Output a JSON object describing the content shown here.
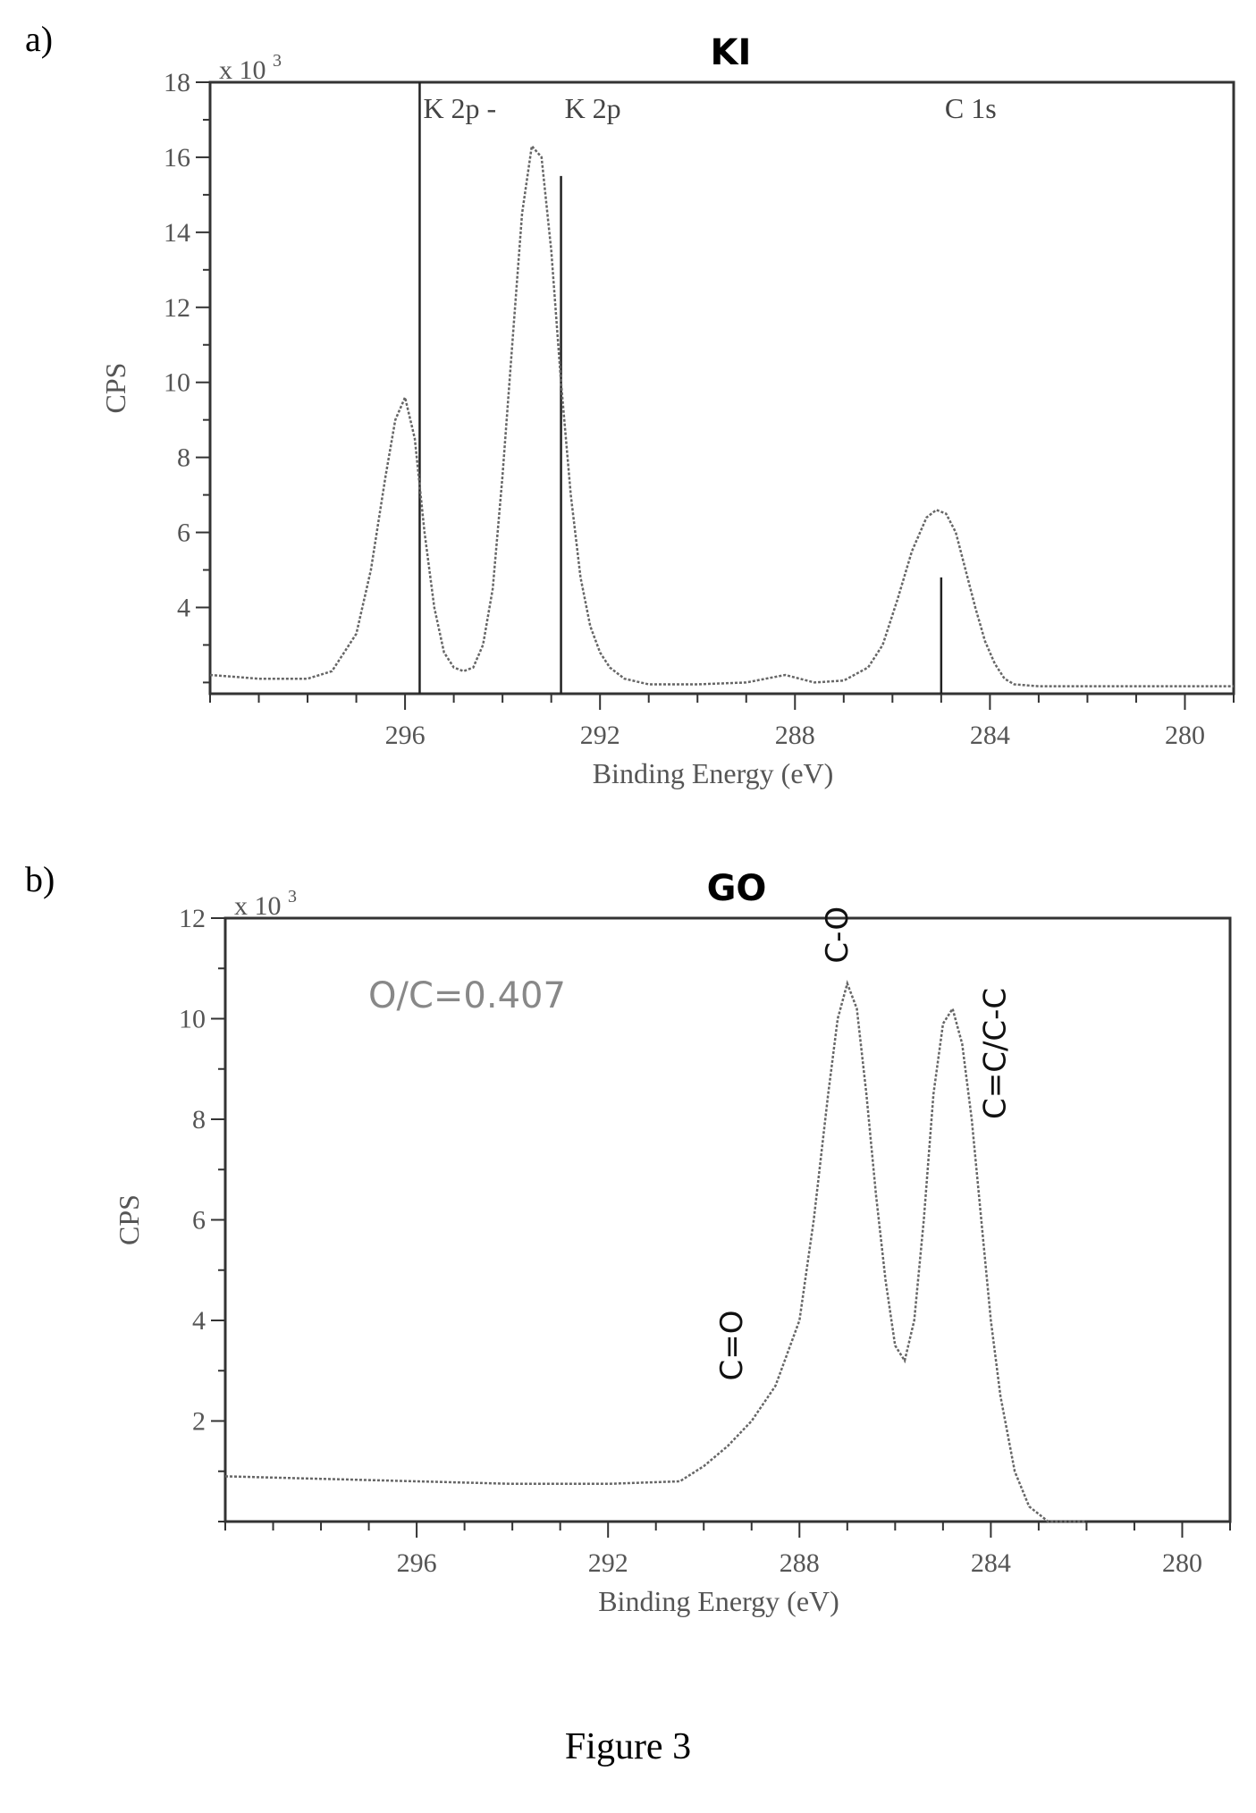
{
  "figure_caption": "Figure 3",
  "chart_data": [
    {
      "panel": "a)",
      "type": "line",
      "title": "KI",
      "xlabel": "Binding Energy (eV)",
      "ylabel": "CPS",
      "scale_label": "x 10",
      "scale_exp": "3",
      "xlim": [
        300,
        279
      ],
      "ylim": [
        1.7,
        18
      ],
      "xticks": [
        296,
        292,
        288,
        284,
        280
      ],
      "yticks": [
        4,
        6,
        8,
        10,
        12,
        14,
        16,
        18
      ],
      "reference_lines": [
        {
          "label": "K 2p",
          "x": 295.7,
          "height": 18
        },
        {
          "label": "K 2p",
          "x": 292.8,
          "height": 15.5
        },
        {
          "label": "C 1s",
          "x": 285.0,
          "height": 4.8
        }
      ],
      "series": [
        {
          "x": [
            300,
            299,
            298,
            297.5,
            297,
            296.7,
            296.4,
            296.2,
            296.0,
            295.8,
            295.6,
            295.4,
            295.2,
            295.0,
            294.8,
            294.6,
            294.4,
            294.2,
            294.0,
            293.8,
            293.6,
            293.4,
            293.2,
            293.0,
            292.8,
            292.6,
            292.4,
            292.2,
            292.0,
            291.8,
            291.5,
            291,
            290,
            289,
            288.2,
            287.6,
            287,
            286.5,
            286.2,
            285.9,
            285.6,
            285.3,
            285.1,
            284.9,
            284.7,
            284.5,
            284.3,
            284.1,
            283.9,
            283.7,
            283.5,
            283,
            282,
            281,
            280,
            279
          ],
          "values": [
            2.2,
            2.1,
            2.1,
            2.3,
            3.3,
            5.0,
            7.5,
            9.0,
            9.6,
            8.5,
            6.0,
            4.0,
            2.8,
            2.4,
            2.3,
            2.4,
            3.0,
            4.5,
            7.5,
            11.0,
            14.5,
            16.3,
            16.0,
            13.5,
            10.0,
            7.0,
            4.8,
            3.5,
            2.8,
            2.4,
            2.1,
            1.95,
            1.95,
            2.0,
            2.2,
            2.0,
            2.05,
            2.4,
            3.0,
            4.2,
            5.5,
            6.4,
            6.6,
            6.5,
            6.0,
            5.0,
            4.0,
            3.1,
            2.5,
            2.1,
            1.95,
            1.9,
            1.9,
            1.9,
            1.9,
            1.9
          ]
        }
      ]
    },
    {
      "panel": "b)",
      "type": "line",
      "title": "GO",
      "xlabel": "Binding Energy (eV)",
      "ylabel": "CPS",
      "scale_label": "x 10",
      "scale_exp": "3",
      "xlim": [
        300,
        279
      ],
      "ylim": [
        0,
        12
      ],
      "xticks": [
        296,
        292,
        288,
        284,
        280
      ],
      "yticks": [
        2,
        4,
        6,
        8,
        10,
        12
      ],
      "annotation": "O/C=0.407",
      "peak_labels": [
        {
          "label": "C-O",
          "x": 287.0,
          "y": 11.1
        },
        {
          "label": "C=C/C-C",
          "x": 283.7,
          "y": 8.0
        },
        {
          "label": "C=O",
          "x": 289.2,
          "y": 2.8
        }
      ],
      "series": [
        {
          "x": [
            300,
            298,
            296,
            294,
            292,
            290.5,
            290,
            289.5,
            289,
            288.5,
            288,
            287.7,
            287.4,
            287.2,
            287.0,
            286.8,
            286.6,
            286.4,
            286.2,
            286.0,
            285.8,
            285.6,
            285.4,
            285.2,
            285.0,
            284.8,
            284.6,
            284.4,
            284.2,
            284.0,
            283.8,
            283.5,
            283.2,
            282.8,
            282
          ],
          "values": [
            0.9,
            0.85,
            0.8,
            0.75,
            0.75,
            0.8,
            1.1,
            1.5,
            2.0,
            2.7,
            4.0,
            6.0,
            8.5,
            10.0,
            10.7,
            10.2,
            8.5,
            6.5,
            4.8,
            3.5,
            3.2,
            4.0,
            6.0,
            8.5,
            9.9,
            10.2,
            9.5,
            8.0,
            6.0,
            4.0,
            2.5,
            1.0,
            0.3,
            0.0,
            0.0
          ]
        }
      ]
    }
  ]
}
